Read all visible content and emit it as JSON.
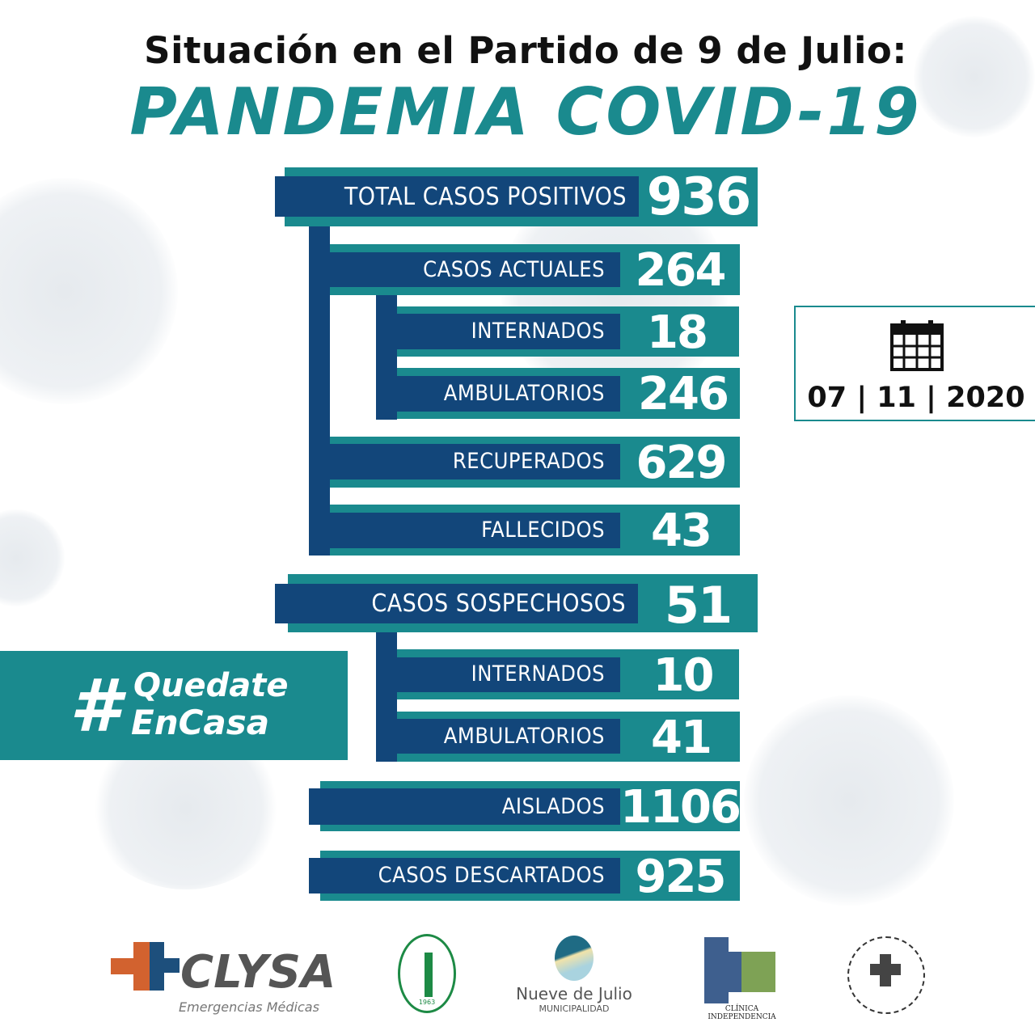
{
  "header": {
    "subtitle": "Situación en el Partido de 9 de Julio:",
    "title": "PANDEMIA COVID-19"
  },
  "stats": {
    "total": {
      "label": "TOTAL CASOS POSITIVOS",
      "value": "936"
    },
    "actuales": {
      "label": "CASOS ACTUALES",
      "value": "264"
    },
    "internados": {
      "label": "INTERNADOS",
      "value": "18"
    },
    "ambulatorios": {
      "label": "AMBULATORIOS",
      "value": "246"
    },
    "recuperados": {
      "label": "RECUPERADOS",
      "value": "629"
    },
    "fallecidos": {
      "label": "FALLECIDOS",
      "value": "43"
    },
    "sospechosos": {
      "label": "CASOS SOSPECHOSOS",
      "value": "51"
    },
    "sosp_internados": {
      "label": "INTERNADOS",
      "value": "10"
    },
    "sosp_ambulatorios": {
      "label": "AMBULATORIOS",
      "value": "41"
    },
    "aislados": {
      "label": "AISLADOS",
      "value": "1106"
    },
    "descartados": {
      "label": "CASOS DESCARTADOS",
      "value": "925"
    }
  },
  "date": {
    "icon": "calendar-icon",
    "text": "07 | 11 | 2020"
  },
  "hashtag": {
    "symbol": "#",
    "line1": "Quedate",
    "line2": "EnCasa"
  },
  "logos": {
    "clysa": {
      "name": "CLYSA",
      "tagline": "Emergencias Médicas"
    },
    "circulo": {
      "year": "1963"
    },
    "municipalidad": {
      "name": "Nueve de Julio",
      "sub": "MUNICIPALIDAD"
    },
    "clinica": {
      "name": "CLÍNICA INDEPENDENCIA"
    }
  },
  "colors": {
    "teal": "#1a8a8e",
    "navy": "#12467a"
  }
}
